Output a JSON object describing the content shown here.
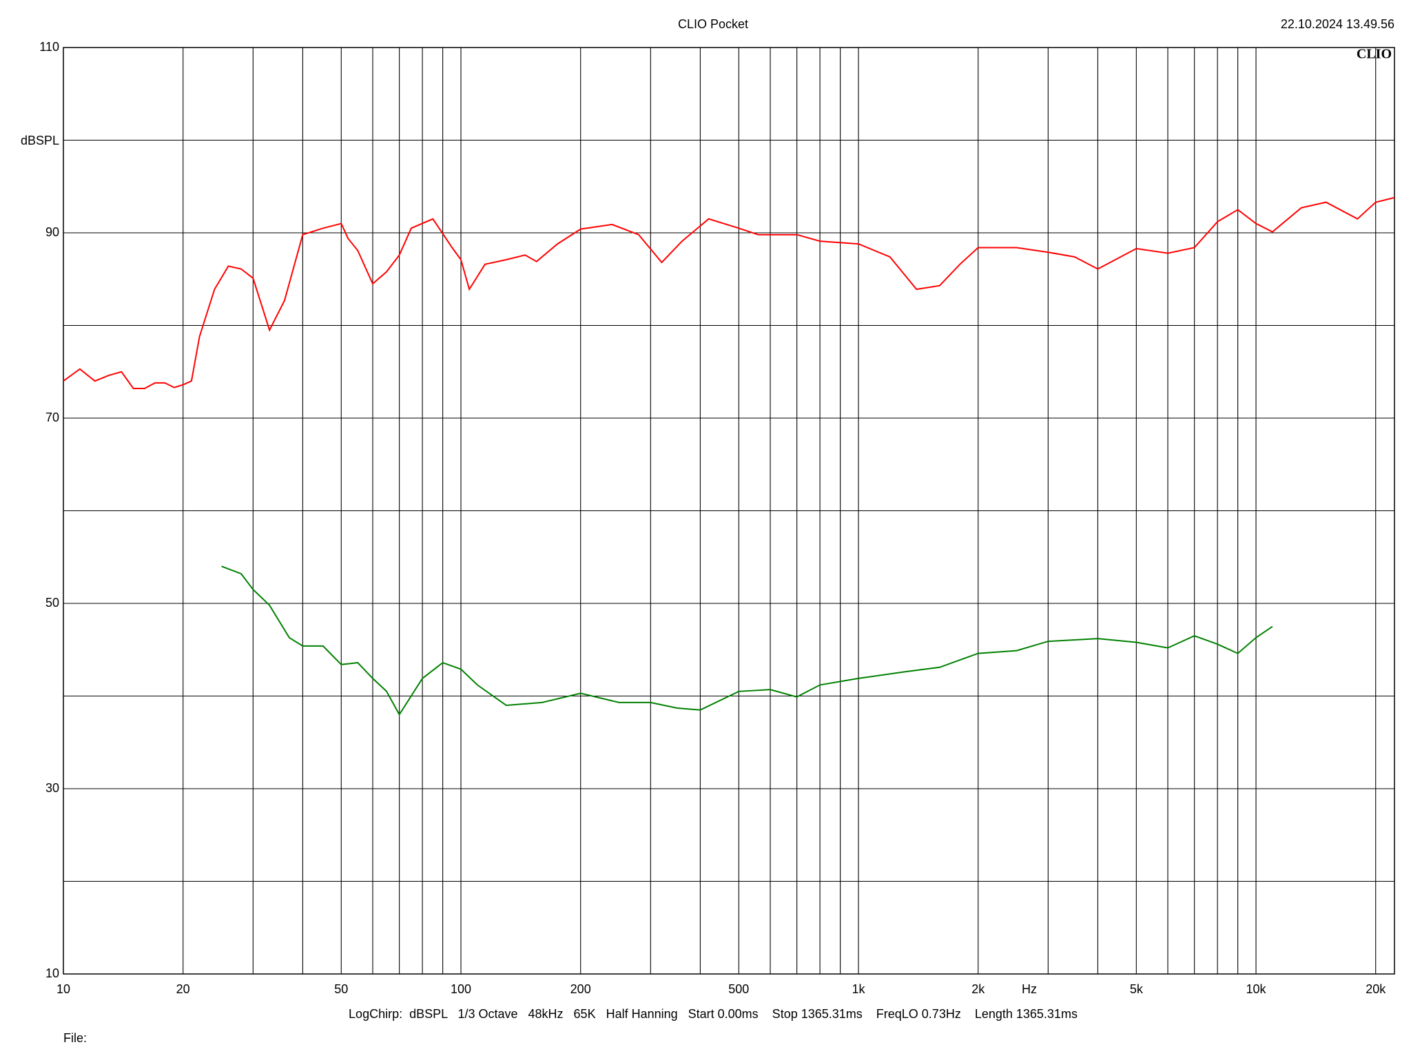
{
  "chart_data": {
    "type": "line",
    "title": "CLIO Pocket",
    "timestamp": "22.10.2024 13.49.56",
    "logo": "CLIO",
    "y_label": "dBSPL",
    "x_label": "Hz",
    "footer": "LogChirp:  dBSPL   1/3 Octave   48kHz   65K   Half Hanning   Start 0.00ms    Stop 1365.31ms    FreqLO 0.73Hz    Length 1365.31ms",
    "file_label": "File:",
    "x_scale": "log",
    "grid": true,
    "xlim": [
      10,
      22300
    ],
    "ylim": [
      10,
      110
    ],
    "xticks": [
      10,
      20,
      50,
      100,
      200,
      500,
      {
        "value": 1000,
        "label": "1k"
      },
      {
        "value": 2000,
        "label": "2k"
      },
      {
        "value": 5000,
        "label": "5k"
      },
      {
        "value": 10000,
        "label": "10k"
      },
      {
        "value": 20000,
        "label": "20k"
      }
    ],
    "x_minor_grid": [
      30,
      40,
      60,
      70,
      80,
      90,
      300,
      400,
      600,
      700,
      800,
      900,
      3000,
      4000,
      6000,
      7000,
      8000,
      9000
    ],
    "yticks": [
      10,
      30,
      50,
      70,
      90,
      110
    ],
    "y_minor_grid": [
      20,
      40,
      60,
      80,
      100
    ],
    "series": [
      {
        "color": "#ff0000",
        "x": [
          10,
          11,
          12,
          13,
          14,
          15,
          16,
          17,
          18,
          19,
          20,
          21,
          22,
          24,
          26,
          28,
          30,
          33,
          36,
          40,
          45,
          50,
          52,
          55,
          60,
          65,
          70,
          75,
          85,
          95,
          100,
          105,
          115,
          130,
          145,
          155,
          175,
          200,
          240,
          280,
          320,
          360,
          420,
          500,
          560,
          700,
          800,
          1000,
          1200,
          1400,
          1600,
          1800,
          2000,
          2500,
          3000,
          3500,
          4000,
          5000,
          6000,
          7000,
          8000,
          9000,
          10000,
          11000,
          13000,
          15000,
          18000,
          20000,
          22300
        ],
        "values": [
          74,
          75.3,
          74,
          74.6,
          75,
          73.2,
          73.2,
          73.8,
          73.8,
          73.3,
          73.6,
          74,
          78.8,
          83.9,
          86.4,
          86.1,
          85.1,
          79.5,
          82.7,
          89.8,
          90.5,
          91,
          89.4,
          88.1,
          84.5,
          85.8,
          87.6,
          90.5,
          91.5,
          88.4,
          87.1,
          83.9,
          86.6,
          87.1,
          87.6,
          86.9,
          88.8,
          90.4,
          90.9,
          89.8,
          86.8,
          89.1,
          91.5,
          90.5,
          89.8,
          89.8,
          89.1,
          88.8,
          87.4,
          83.9,
          84.3,
          86.6,
          88.4,
          88.4,
          87.9,
          87.4,
          86.1,
          88.3,
          87.8,
          88.4,
          91.2,
          92.5,
          91,
          90.1,
          92.7,
          93.3,
          91.5,
          93.3,
          93.8
        ]
      },
      {
        "color": "#008000",
        "x": [
          25,
          28,
          30,
          33,
          37,
          40,
          45,
          50,
          55,
          60,
          65,
          70,
          80,
          90,
          100,
          110,
          130,
          160,
          200,
          250,
          300,
          350,
          400,
          500,
          600,
          700,
          800,
          1000,
          1300,
          1600,
          2000,
          2500,
          3000,
          4000,
          5000,
          6000,
          7000,
          8000,
          9000,
          10000,
          11000
        ],
        "values": [
          54,
          53.2,
          51.5,
          49.8,
          46.3,
          45.4,
          45.4,
          43.4,
          43.6,
          41.9,
          40.5,
          38,
          41.9,
          43.6,
          42.9,
          41.2,
          39,
          39.3,
          40.3,
          39.3,
          39.3,
          38.7,
          38.5,
          40.5,
          40.7,
          39.9,
          41.2,
          41.9,
          42.6,
          43.1,
          44.6,
          44.9,
          45.9,
          46.2,
          45.8,
          45.2,
          46.5,
          45.6,
          44.6,
          46.3,
          47.5
        ]
      }
    ]
  }
}
